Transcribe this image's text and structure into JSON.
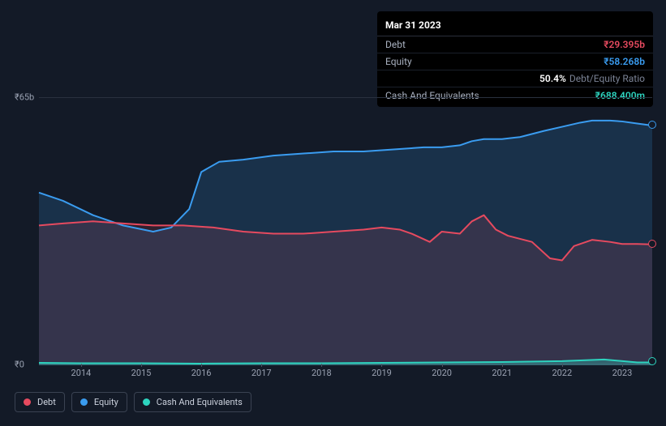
{
  "tooltip": {
    "date": "Mar 31 2023",
    "rows": [
      {
        "label": "Debt",
        "value": "₹29.395b",
        "cls": "debt"
      },
      {
        "label": "Equity",
        "value": "₹58.268b",
        "cls": "equity"
      },
      {
        "label": "",
        "ratio_pct": "50.4%",
        "ratio_txt": "Debt/Equity Ratio",
        "cls": "ratio"
      },
      {
        "label": "Cash And Equivalents",
        "value": "₹688.400m",
        "cls": "cash"
      }
    ]
  },
  "chart": {
    "type": "area",
    "background_color": "#131a27",
    "grid_color": "#29313f",
    "ylim": [
      0,
      65
    ],
    "ylabels": [
      {
        "v": 65,
        "text": "₹65b"
      },
      {
        "v": 0,
        "text": "₹0"
      }
    ],
    "xlim": [
      2013.3,
      2023.5
    ],
    "xticks": [
      2014,
      2015,
      2016,
      2017,
      2018,
      2019,
      2020,
      2021,
      2022,
      2023
    ],
    "label_fontsize": 11,
    "series": [
      {
        "name": "Equity",
        "color": "#3a9cf0",
        "fill_opacity": 0.18,
        "line_width": 2,
        "points": [
          [
            2013.3,
            42
          ],
          [
            2013.7,
            40
          ],
          [
            2014.2,
            36.5
          ],
          [
            2014.7,
            34
          ],
          [
            2015.2,
            32.5
          ],
          [
            2015.5,
            33.5
          ],
          [
            2015.8,
            38
          ],
          [
            2016.0,
            47
          ],
          [
            2016.3,
            49.5
          ],
          [
            2016.7,
            50
          ],
          [
            2017.2,
            51
          ],
          [
            2017.7,
            51.5
          ],
          [
            2018.2,
            52
          ],
          [
            2018.7,
            52
          ],
          [
            2019.2,
            52.5
          ],
          [
            2019.7,
            53
          ],
          [
            2020.0,
            53
          ],
          [
            2020.3,
            53.5
          ],
          [
            2020.5,
            54.5
          ],
          [
            2020.7,
            55
          ],
          [
            2021.0,
            55
          ],
          [
            2021.3,
            55.5
          ],
          [
            2021.7,
            57
          ],
          [
            2022.0,
            58
          ],
          [
            2022.3,
            59
          ],
          [
            2022.5,
            59.5
          ],
          [
            2022.8,
            59.5
          ],
          [
            2023.0,
            59.3
          ],
          [
            2023.25,
            58.8
          ],
          [
            2023.5,
            58.3
          ]
        ]
      },
      {
        "name": "Debt",
        "color": "#e64a5f",
        "fill_opacity": 0.14,
        "line_width": 2,
        "points": [
          [
            2013.3,
            34
          ],
          [
            2013.7,
            34.5
          ],
          [
            2014.2,
            35
          ],
          [
            2014.7,
            34.5
          ],
          [
            2015.2,
            34
          ],
          [
            2015.7,
            34
          ],
          [
            2016.2,
            33.5
          ],
          [
            2016.7,
            32.5
          ],
          [
            2017.2,
            32
          ],
          [
            2017.7,
            32
          ],
          [
            2018.2,
            32.5
          ],
          [
            2018.7,
            33
          ],
          [
            2019.0,
            33.5
          ],
          [
            2019.3,
            33
          ],
          [
            2019.5,
            32
          ],
          [
            2019.8,
            30
          ],
          [
            2020.0,
            32.5
          ],
          [
            2020.3,
            32
          ],
          [
            2020.5,
            35
          ],
          [
            2020.7,
            36.5
          ],
          [
            2020.9,
            33
          ],
          [
            2021.1,
            31.5
          ],
          [
            2021.5,
            30
          ],
          [
            2021.8,
            26
          ],
          [
            2022.0,
            25.5
          ],
          [
            2022.2,
            29
          ],
          [
            2022.5,
            30.5
          ],
          [
            2022.8,
            30
          ],
          [
            2023.0,
            29.5
          ],
          [
            2023.25,
            29.5
          ],
          [
            2023.5,
            29.4
          ]
        ]
      },
      {
        "name": "Cash And Equivalents",
        "color": "#2dd4bf",
        "fill_opacity": 0.3,
        "line_width": 2,
        "points": [
          [
            2013.3,
            0.6
          ],
          [
            2014,
            0.5
          ],
          [
            2015,
            0.5
          ],
          [
            2016,
            0.4
          ],
          [
            2017,
            0.5
          ],
          [
            2018,
            0.5
          ],
          [
            2019,
            0.6
          ],
          [
            2020,
            0.7
          ],
          [
            2021,
            0.8
          ],
          [
            2022,
            1.0
          ],
          [
            2022.7,
            1.4
          ],
          [
            2023.25,
            0.7
          ],
          [
            2023.5,
            0.7
          ]
        ]
      }
    ]
  },
  "legend": [
    {
      "label": "Debt",
      "color": "#e64a5f"
    },
    {
      "label": "Equity",
      "color": "#3a9cf0"
    },
    {
      "label": "Cash And Equivalents",
      "color": "#2dd4bf"
    }
  ]
}
